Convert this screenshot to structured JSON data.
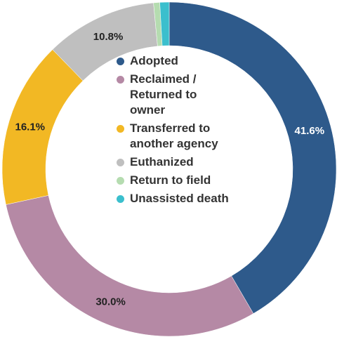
{
  "chart_data": {
    "type": "donut",
    "categories": [
      "Adopted",
      "Reclaimed / Returned to owner",
      "Transferred to another agency",
      "Euthanized",
      "Return to field",
      "Unassisted death"
    ],
    "values": [
      41.6,
      30.0,
      16.1,
      10.8,
      0.6,
      0.9
    ],
    "value_labels": [
      "41.6%",
      "30.0%",
      "16.1%",
      "10.8%",
      null,
      null
    ],
    "colors": [
      "#2e5a8b",
      "#b589a5",
      "#f2b824",
      "#bfbfbf",
      "#b5dcb0",
      "#3bbfcd"
    ],
    "legend": "center"
  }
}
